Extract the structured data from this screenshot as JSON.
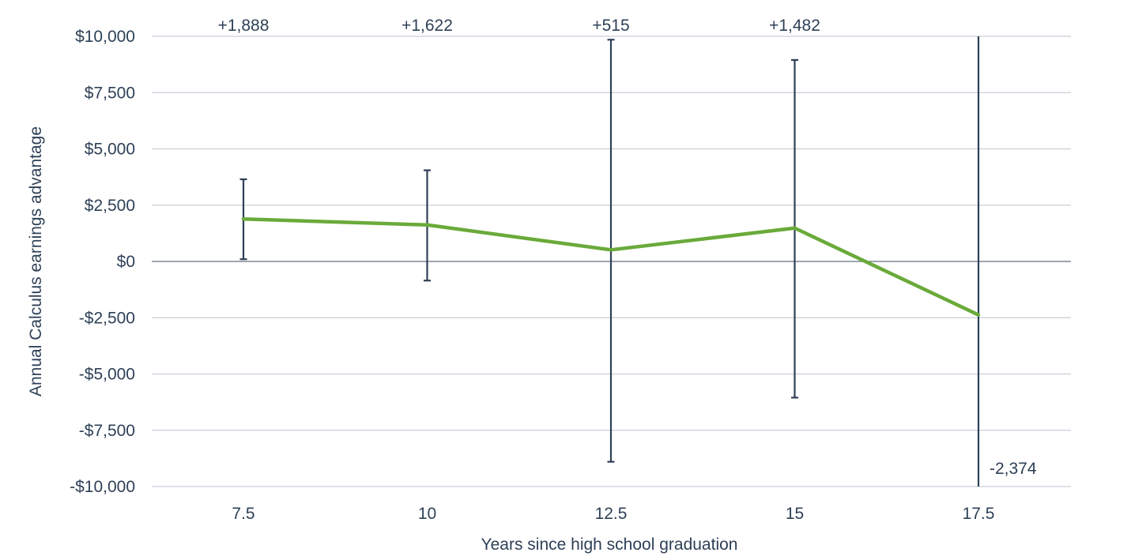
{
  "chart_data": {
    "type": "line",
    "title": "",
    "xlabel": "Years since high school graduation",
    "ylabel": "Annual Calculus earnings advantage",
    "categories": [
      "7.5",
      "10",
      "12.5",
      "15",
      "17.5"
    ],
    "ylim": [
      -10000,
      10000
    ],
    "yticks": [
      10000,
      7500,
      5000,
      2500,
      0,
      -2500,
      -5000,
      -7500,
      -10000
    ],
    "ytick_labels": [
      "$10,000",
      "$7,500",
      "$5,000",
      "$2,500",
      "$0",
      "-$2,500",
      "-$5,000",
      "-$7,500",
      "-$10,000"
    ],
    "grid": true,
    "legend": "none",
    "series": [
      {
        "values": [
          1888,
          1622,
          515,
          1482,
          -2374
        ],
        "error_low": [
          100,
          -850,
          -8900,
          -6050,
          -10000
        ],
        "error_high": [
          3650,
          4050,
          9850,
          8950,
          10000
        ],
        "data_labels": [
          "+1,888",
          "+1,622",
          "+515",
          "+1,482",
          "-2,374"
        ],
        "color": "#6aaa3a"
      }
    ],
    "colors": {
      "line": "#6aaa3a",
      "error_bars": "#2e4057",
      "text": "#2e4057",
      "grid": "#c9ced6"
    }
  }
}
